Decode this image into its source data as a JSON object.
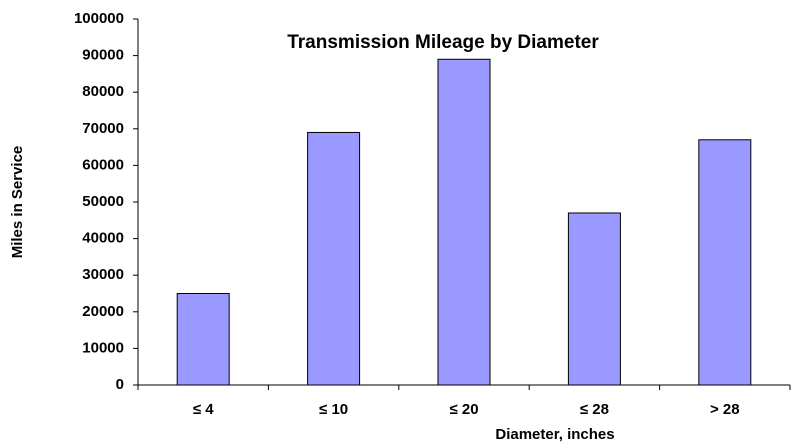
{
  "chart_data": {
    "type": "bar",
    "title": "Transmission Mileage by Diameter",
    "x_label": "Diameter, inches",
    "y_label": "Miles in Service",
    "categories": [
      "≤ 4",
      "≤ 10",
      "≤ 20",
      "≤ 28",
      "> 28"
    ],
    "values": [
      25000,
      69000,
      89000,
      47000,
      67000
    ],
    "color": "#9999ff",
    "ylim": [
      0,
      100000
    ],
    "yticks": [
      0,
      10000,
      20000,
      30000,
      40000,
      50000,
      60000,
      70000,
      80000,
      90000,
      100000
    ],
    "grid": false
  }
}
